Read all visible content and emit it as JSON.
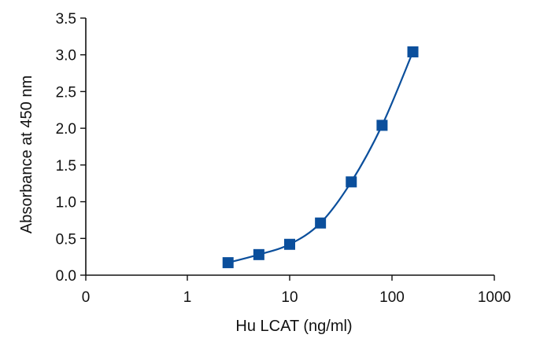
{
  "chart_data": {
    "type": "scatter",
    "title": "",
    "xlabel": "Hu LCAT (ng/ml)",
    "ylabel": "Absorbance at 450 nm",
    "x_scale": "log",
    "x_ticks": [
      {
        "value": 0,
        "label": "0"
      },
      {
        "value": 1,
        "label": "1"
      },
      {
        "value": 10,
        "label": "10"
      },
      {
        "value": 100,
        "label": "100"
      },
      {
        "value": 1000,
        "label": "1000"
      }
    ],
    "y_ticks": [
      {
        "value": 0,
        "label": "0.0"
      },
      {
        "value": 0.5,
        "label": "0.5"
      },
      {
        "value": 1,
        "label": "1.0"
      },
      {
        "value": 1.5,
        "label": "1.5"
      },
      {
        "value": 2,
        "label": "2.0"
      },
      {
        "value": 2.5,
        "label": "2.5"
      },
      {
        "value": 3,
        "label": "3.0"
      },
      {
        "value": 3.5,
        "label": "3.5"
      }
    ],
    "ylim": [
      0,
      3.5
    ],
    "grid": false,
    "legend": "none",
    "series": [
      {
        "x": [
          2.5,
          5,
          10,
          20,
          40,
          80,
          160
        ],
        "y": [
          0.17,
          0.28,
          0.42,
          0.71,
          1.27,
          2.04,
          3.04
        ],
        "marker": "square",
        "color": "#0b4f9c",
        "fit_curve": true
      }
    ]
  }
}
